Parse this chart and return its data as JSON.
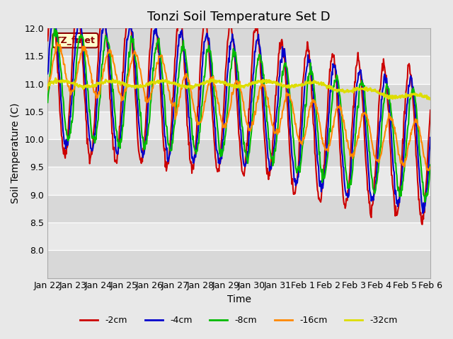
{
  "title": "Tonzi Soil Temperature Set D",
  "xlabel": "Time",
  "ylabel": "Soil Temperature (C)",
  "ylim": [
    7.5,
    12.0
  ],
  "yticks": [
    8.0,
    8.5,
    9.0,
    9.5,
    10.0,
    10.5,
    11.0,
    11.5,
    12.0
  ],
  "legend_label": "TZ_fmet",
  "line_colors": {
    "-2cm": "#cc0000",
    "-4cm": "#0000cc",
    "-8cm": "#00bb00",
    "-16cm": "#ff8800",
    "-32cm": "#dddd00"
  },
  "line_widths": {
    "-2cm": 1.5,
    "-4cm": 1.5,
    "-8cm": 1.5,
    "-16cm": 1.5,
    "-32cm": 2.0
  },
  "background_color": "#e8e8e8",
  "plot_bg_color": "#d8d8d8",
  "title_fontsize": 13,
  "axis_fontsize": 10,
  "tick_fontsize": 9,
  "xtick_labels": [
    "Jan 22",
    "Jan 23",
    "Jan 24",
    "Jan 25",
    "Jan 26",
    "Jan 27",
    "Jan 28",
    "Jan 29",
    "Jan 30",
    "Jan 31",
    "Feb 1",
    "Feb 2",
    "Feb 3",
    "Feb 4",
    "Feb 5",
    "Feb 6"
  ],
  "legend_entries": [
    "-2cm",
    "-4cm",
    "-8cm",
    "-16cm",
    "-32cm"
  ]
}
